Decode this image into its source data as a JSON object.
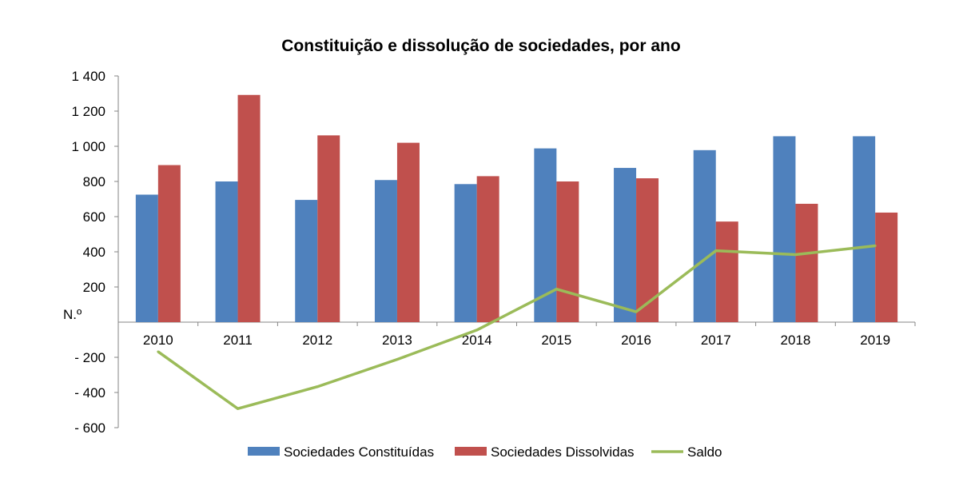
{
  "chart_data": {
    "type": "bar",
    "title": "Constituição e dissolução de sociedades, por ano",
    "ylabel": "N.º",
    "xlabel": "",
    "categories": [
      "2010",
      "2011",
      "2012",
      "2013",
      "2014",
      "2015",
      "2016",
      "2017",
      "2018",
      "2019"
    ],
    "ylim": [
      -600,
      1400
    ],
    "yticks": [
      -600,
      -400,
      -200,
      200,
      400,
      600,
      800,
      1000,
      1200,
      1400
    ],
    "ytick_labels": [
      "- 600",
      "- 400",
      "- 200",
      "200",
      "400",
      "600",
      "800",
      "1 000",
      "1 200",
      "1 400"
    ],
    "series": [
      {
        "name": "Sociedades Constituídas",
        "type": "bar",
        "color": "#4F81BD",
        "values": [
          725,
          800,
          695,
          808,
          785,
          988,
          877,
          978,
          1057,
          1057
        ]
      },
      {
        "name": "Sociedades Dissolvidas",
        "type": "bar",
        "color": "#C0504D",
        "values": [
          893,
          1292,
          1062,
          1020,
          830,
          800,
          818,
          572,
          673,
          623
        ]
      },
      {
        "name": "Saldo",
        "type": "line",
        "color": "#9BBB59",
        "values": [
          -168,
          -492,
          -367,
          -212,
          -45,
          188,
          59,
          406,
          384,
          434
        ]
      }
    ],
    "grid": false,
    "legend": "bottom"
  }
}
